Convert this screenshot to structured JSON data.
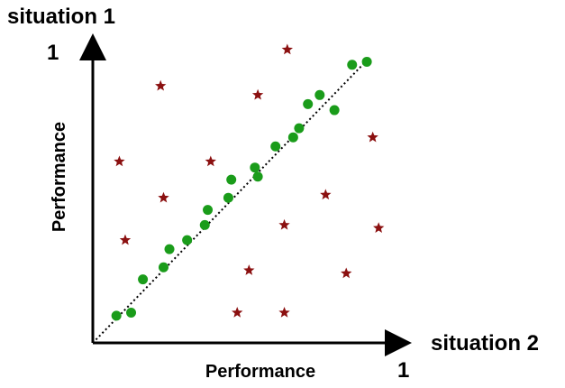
{
  "chart_data": {
    "type": "scatter",
    "title": "",
    "y_axis": {
      "top_label": "situation 1",
      "max_label": "1",
      "title": "Performance",
      "range": [
        0,
        1
      ]
    },
    "x_axis": {
      "end_label": "situation 2",
      "max_label": "1",
      "title": "Performance",
      "range": [
        0,
        1
      ]
    },
    "grid": false,
    "diagonal": {
      "style": "dotted",
      "from": [
        0,
        0
      ],
      "to": [
        1,
        1
      ]
    },
    "series": [
      {
        "marker": "circle",
        "color": "#1a9c1a",
        "points": [
          [
            0.08,
            0.09
          ],
          [
            0.13,
            0.1
          ],
          [
            0.17,
            0.21
          ],
          [
            0.24,
            0.25
          ],
          [
            0.26,
            0.31
          ],
          [
            0.32,
            0.34
          ],
          [
            0.38,
            0.39
          ],
          [
            0.39,
            0.44
          ],
          [
            0.46,
            0.48
          ],
          [
            0.47,
            0.54
          ],
          [
            0.55,
            0.58
          ],
          [
            0.56,
            0.55
          ],
          [
            0.62,
            0.65
          ],
          [
            0.68,
            0.68
          ],
          [
            0.7,
            0.71
          ],
          [
            0.73,
            0.79
          ],
          [
            0.77,
            0.82
          ],
          [
            0.82,
            0.77
          ],
          [
            0.88,
            0.92
          ],
          [
            0.93,
            0.93
          ]
        ]
      },
      {
        "marker": "star",
        "color": "#8b1010",
        "points": [
          [
            0.09,
            0.6
          ],
          [
            0.11,
            0.34
          ],
          [
            0.23,
            0.85
          ],
          [
            0.24,
            0.48
          ],
          [
            0.4,
            0.6
          ],
          [
            0.49,
            0.1
          ],
          [
            0.53,
            0.24
          ],
          [
            0.56,
            0.82
          ],
          [
            0.65,
            0.1
          ],
          [
            0.65,
            0.39
          ],
          [
            0.66,
            0.97
          ],
          [
            0.79,
            0.49
          ],
          [
            0.86,
            0.23
          ],
          [
            0.95,
            0.68
          ],
          [
            0.97,
            0.38
          ]
        ]
      }
    ]
  }
}
